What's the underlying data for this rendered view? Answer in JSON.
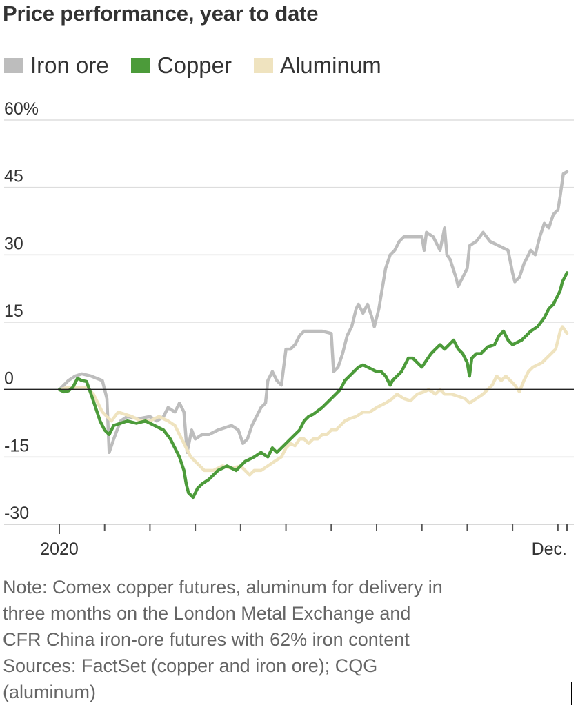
{
  "title": "Price performance, year to date",
  "legend": [
    {
      "label": "Iron ore",
      "color": "#bdbdbd"
    },
    {
      "label": "Copper",
      "color": "#4c9b3a"
    },
    {
      "label": "Aluminum",
      "color": "#efe3bf"
    }
  ],
  "note": {
    "line1": "Note: Comex copper futures, aluminum for delivery in",
    "line2": "three months on the London Metal Exchange and",
    "line3": "CFR China iron-ore futures with 62% iron content",
    "line4": "Sources: FactSet (copper and iron ore); CQG",
    "line5": "(aluminum)"
  },
  "chart_data": {
    "type": "line",
    "title": "Price performance, year to date",
    "xlabel": "",
    "ylabel": "",
    "ylim": [
      -30,
      60
    ],
    "xlim": [
      0,
      11.2
    ],
    "grid": true,
    "legend_position": "top",
    "yticks": [
      {
        "value": 60,
        "label": "60%"
      },
      {
        "value": 45,
        "label": "45"
      },
      {
        "value": 30,
        "label": "30"
      },
      {
        "value": 15,
        "label": "15"
      },
      {
        "value": 0,
        "label": "0"
      },
      {
        "value": -15,
        "label": "-15"
      },
      {
        "value": -30,
        "label": "-30"
      }
    ],
    "xtick_labels": [
      {
        "x": 0,
        "label": "2020"
      },
      {
        "x": 11.2,
        "label": "Dec."
      }
    ],
    "month_ticks": [
      0,
      1,
      2,
      3,
      4,
      5,
      6,
      7,
      8,
      9,
      10,
      11
    ],
    "series": [
      {
        "name": "Iron ore",
        "color": "#bdbdbd",
        "points": [
          [
            0,
            0
          ],
          [
            0.2,
            2
          ],
          [
            0.35,
            3
          ],
          [
            0.5,
            3.5
          ],
          [
            0.7,
            3
          ],
          [
            0.95,
            2
          ],
          [
            1.05,
            -2
          ],
          [
            1.1,
            -14
          ],
          [
            1.2,
            -11
          ],
          [
            1.35,
            -7
          ],
          [
            1.5,
            -6
          ],
          [
            1.75,
            -6.5
          ],
          [
            2.0,
            -6
          ],
          [
            2.15,
            -7
          ],
          [
            2.3,
            -6
          ],
          [
            2.4,
            -4
          ],
          [
            2.55,
            -5
          ],
          [
            2.65,
            -3
          ],
          [
            2.75,
            -5
          ],
          [
            2.82,
            -14
          ],
          [
            2.92,
            -9
          ],
          [
            3.0,
            -11
          ],
          [
            3.15,
            -10
          ],
          [
            3.3,
            -10
          ],
          [
            3.5,
            -9
          ],
          [
            3.8,
            -8
          ],
          [
            3.95,
            -9
          ],
          [
            4.05,
            -12
          ],
          [
            4.15,
            -11
          ],
          [
            4.25,
            -8
          ],
          [
            4.35,
            -6
          ],
          [
            4.45,
            -4
          ],
          [
            4.55,
            -3
          ],
          [
            4.6,
            2
          ],
          [
            4.7,
            4
          ],
          [
            4.8,
            2
          ],
          [
            4.9,
            1
          ],
          [
            4.95,
            5
          ],
          [
            5.0,
            9
          ],
          [
            5.1,
            9
          ],
          [
            5.2,
            10
          ],
          [
            5.3,
            12
          ],
          [
            5.4,
            13
          ],
          [
            5.6,
            13
          ],
          [
            5.8,
            13
          ],
          [
            6.0,
            12.5
          ],
          [
            6.05,
            4
          ],
          [
            6.15,
            5
          ],
          [
            6.25,
            8
          ],
          [
            6.35,
            12
          ],
          [
            6.45,
            14
          ],
          [
            6.55,
            18
          ],
          [
            6.6,
            19
          ],
          [
            6.7,
            17
          ],
          [
            6.8,
            19
          ],
          [
            6.9,
            16
          ],
          [
            6.95,
            14
          ],
          [
            7.05,
            18
          ],
          [
            7.2,
            27
          ],
          [
            7.3,
            30
          ],
          [
            7.4,
            31
          ],
          [
            7.5,
            33
          ],
          [
            7.6,
            34
          ],
          [
            7.8,
            34
          ],
          [
            8.0,
            34
          ],
          [
            8.05,
            31
          ],
          [
            8.1,
            35
          ],
          [
            8.25,
            34
          ],
          [
            8.4,
            31
          ],
          [
            8.5,
            36
          ],
          [
            8.55,
            30
          ],
          [
            8.62,
            29
          ],
          [
            8.75,
            25
          ],
          [
            8.8,
            23
          ],
          [
            8.9,
            25
          ],
          [
            9.0,
            27
          ],
          [
            9.05,
            32
          ],
          [
            9.2,
            33
          ],
          [
            9.35,
            35
          ],
          [
            9.5,
            33
          ],
          [
            9.7,
            32
          ],
          [
            9.9,
            31
          ],
          [
            10.0,
            26
          ],
          [
            10.05,
            24
          ],
          [
            10.15,
            25
          ],
          [
            10.25,
            28
          ],
          [
            10.4,
            31
          ],
          [
            10.5,
            30
          ],
          [
            10.6,
            34
          ],
          [
            10.7,
            37
          ],
          [
            10.8,
            36
          ],
          [
            10.9,
            39
          ],
          [
            11.0,
            40
          ],
          [
            11.05,
            43
          ],
          [
            11.12,
            48
          ],
          [
            11.2,
            48.5
          ]
        ]
      },
      {
        "name": "Copper",
        "color": "#4c9b3a",
        "points": [
          [
            0,
            0
          ],
          [
            0.1,
            -0.5
          ],
          [
            0.2,
            -0.3
          ],
          [
            0.3,
            0.5
          ],
          [
            0.4,
            2.5
          ],
          [
            0.5,
            2
          ],
          [
            0.6,
            1.8
          ],
          [
            0.7,
            -1
          ],
          [
            0.8,
            -4
          ],
          [
            0.9,
            -7
          ],
          [
            1.0,
            -9
          ],
          [
            1.1,
            -10
          ],
          [
            1.2,
            -8
          ],
          [
            1.35,
            -7.5
          ],
          [
            1.5,
            -7
          ],
          [
            1.7,
            -7.5
          ],
          [
            1.9,
            -7
          ],
          [
            2.1,
            -8
          ],
          [
            2.3,
            -9
          ],
          [
            2.45,
            -11
          ],
          [
            2.55,
            -13
          ],
          [
            2.65,
            -15
          ],
          [
            2.75,
            -18
          ],
          [
            2.8,
            -21
          ],
          [
            2.85,
            -23
          ],
          [
            2.95,
            -24
          ],
          [
            3.05,
            -22
          ],
          [
            3.15,
            -21
          ],
          [
            3.3,
            -20
          ],
          [
            3.5,
            -18
          ],
          [
            3.7,
            -17
          ],
          [
            3.9,
            -18
          ],
          [
            4.0,
            -17
          ],
          [
            4.1,
            -16
          ],
          [
            4.2,
            -15.5
          ],
          [
            4.3,
            -15
          ],
          [
            4.45,
            -14
          ],
          [
            4.6,
            -15
          ],
          [
            4.7,
            -13
          ],
          [
            4.8,
            -14
          ],
          [
            4.9,
            -13
          ],
          [
            5.0,
            -12
          ],
          [
            5.1,
            -11
          ],
          [
            5.2,
            -10
          ],
          [
            5.3,
            -9
          ],
          [
            5.4,
            -7
          ],
          [
            5.5,
            -6
          ],
          [
            5.6,
            -5.5
          ],
          [
            5.8,
            -4
          ],
          [
            6.0,
            -2
          ],
          [
            6.2,
            0
          ],
          [
            6.3,
            2
          ],
          [
            6.4,
            3
          ],
          [
            6.5,
            4
          ],
          [
            6.6,
            5
          ],
          [
            6.7,
            5.5
          ],
          [
            6.8,
            5
          ],
          [
            6.9,
            4.5
          ],
          [
            7.0,
            4
          ],
          [
            7.1,
            4
          ],
          [
            7.2,
            3
          ],
          [
            7.3,
            1
          ],
          [
            7.35,
            2
          ],
          [
            7.45,
            3
          ],
          [
            7.55,
            4
          ],
          [
            7.65,
            6
          ],
          [
            7.7,
            7
          ],
          [
            7.8,
            7
          ],
          [
            7.9,
            6
          ],
          [
            8.0,
            5
          ],
          [
            8.1,
            6.5
          ],
          [
            8.2,
            8
          ],
          [
            8.3,
            9
          ],
          [
            8.4,
            10
          ],
          [
            8.5,
            9
          ],
          [
            8.6,
            10
          ],
          [
            8.7,
            11
          ],
          [
            8.8,
            9
          ],
          [
            8.9,
            8
          ],
          [
            9.0,
            6
          ],
          [
            9.05,
            3
          ],
          [
            9.1,
            7
          ],
          [
            9.2,
            8
          ],
          [
            9.3,
            8
          ],
          [
            9.45,
            9.5
          ],
          [
            9.6,
            10
          ],
          [
            9.7,
            12
          ],
          [
            9.8,
            13
          ],
          [
            9.9,
            11
          ],
          [
            10.0,
            10
          ],
          [
            10.1,
            10.5
          ],
          [
            10.2,
            11
          ],
          [
            10.3,
            12
          ],
          [
            10.4,
            13
          ],
          [
            10.55,
            14
          ],
          [
            10.7,
            16
          ],
          [
            10.8,
            18
          ],
          [
            10.9,
            19
          ],
          [
            11.0,
            21
          ],
          [
            11.05,
            22
          ],
          [
            11.1,
            24
          ],
          [
            11.2,
            26
          ]
        ]
      },
      {
        "name": "Aluminum",
        "color": "#efe3bf",
        "points": [
          [
            0,
            0
          ],
          [
            0.2,
            0.5
          ],
          [
            0.4,
            0.5
          ],
          [
            0.6,
            0.5
          ],
          [
            0.75,
            -1
          ],
          [
            0.85,
            -3
          ],
          [
            0.95,
            -5
          ],
          [
            1.05,
            -6
          ],
          [
            1.15,
            -7
          ],
          [
            1.3,
            -5
          ],
          [
            1.45,
            -5.5
          ],
          [
            1.6,
            -6
          ],
          [
            1.8,
            -7
          ],
          [
            2.0,
            -7
          ],
          [
            2.2,
            -6
          ],
          [
            2.4,
            -7
          ],
          [
            2.55,
            -8
          ],
          [
            2.6,
            -9
          ],
          [
            2.7,
            -11
          ],
          [
            2.8,
            -13
          ],
          [
            2.9,
            -15
          ],
          [
            3.0,
            -16
          ],
          [
            3.1,
            -17
          ],
          [
            3.2,
            -18
          ],
          [
            3.4,
            -18
          ],
          [
            3.6,
            -17
          ],
          [
            3.8,
            -17.5
          ],
          [
            4.0,
            -17
          ],
          [
            4.1,
            -18
          ],
          [
            4.2,
            -19
          ],
          [
            4.3,
            -18
          ],
          [
            4.45,
            -18
          ],
          [
            4.6,
            -17
          ],
          [
            4.75,
            -16
          ],
          [
            4.9,
            -15
          ],
          [
            5.0,
            -13
          ],
          [
            5.1,
            -12
          ],
          [
            5.2,
            -12.5
          ],
          [
            5.3,
            -11
          ],
          [
            5.4,
            -11
          ],
          [
            5.5,
            -12
          ],
          [
            5.6,
            -11
          ],
          [
            5.7,
            -11
          ],
          [
            5.8,
            -10
          ],
          [
            5.9,
            -10
          ],
          [
            6.0,
            -9
          ],
          [
            6.1,
            -9
          ],
          [
            6.2,
            -8
          ],
          [
            6.3,
            -7
          ],
          [
            6.4,
            -6.5
          ],
          [
            6.55,
            -6
          ],
          [
            6.7,
            -5
          ],
          [
            6.85,
            -5
          ],
          [
            7.0,
            -4
          ],
          [
            7.2,
            -3
          ],
          [
            7.35,
            -2
          ],
          [
            7.45,
            -1
          ],
          [
            7.6,
            -2
          ],
          [
            7.75,
            -2.5
          ],
          [
            7.9,
            -1
          ],
          [
            8.05,
            -0.5
          ],
          [
            8.15,
            0
          ],
          [
            8.3,
            -1
          ],
          [
            8.4,
            0
          ],
          [
            8.5,
            -1
          ],
          [
            8.65,
            -1
          ],
          [
            8.8,
            -1.5
          ],
          [
            8.95,
            -2
          ],
          [
            9.05,
            -3
          ],
          [
            9.2,
            -2
          ],
          [
            9.35,
            -1
          ],
          [
            9.45,
            0
          ],
          [
            9.55,
            1
          ],
          [
            9.65,
            3
          ],
          [
            9.75,
            2
          ],
          [
            9.85,
            3
          ],
          [
            9.95,
            2
          ],
          [
            10.05,
            1
          ],
          [
            10.15,
            -0.5
          ],
          [
            10.25,
            2
          ],
          [
            10.35,
            4
          ],
          [
            10.45,
            5
          ],
          [
            10.55,
            5.5
          ],
          [
            10.65,
            6
          ],
          [
            10.75,
            7
          ],
          [
            10.85,
            8
          ],
          [
            10.95,
            9
          ],
          [
            11.0,
            11
          ],
          [
            11.05,
            13
          ],
          [
            11.1,
            14
          ],
          [
            11.2,
            12.5
          ]
        ]
      }
    ]
  }
}
